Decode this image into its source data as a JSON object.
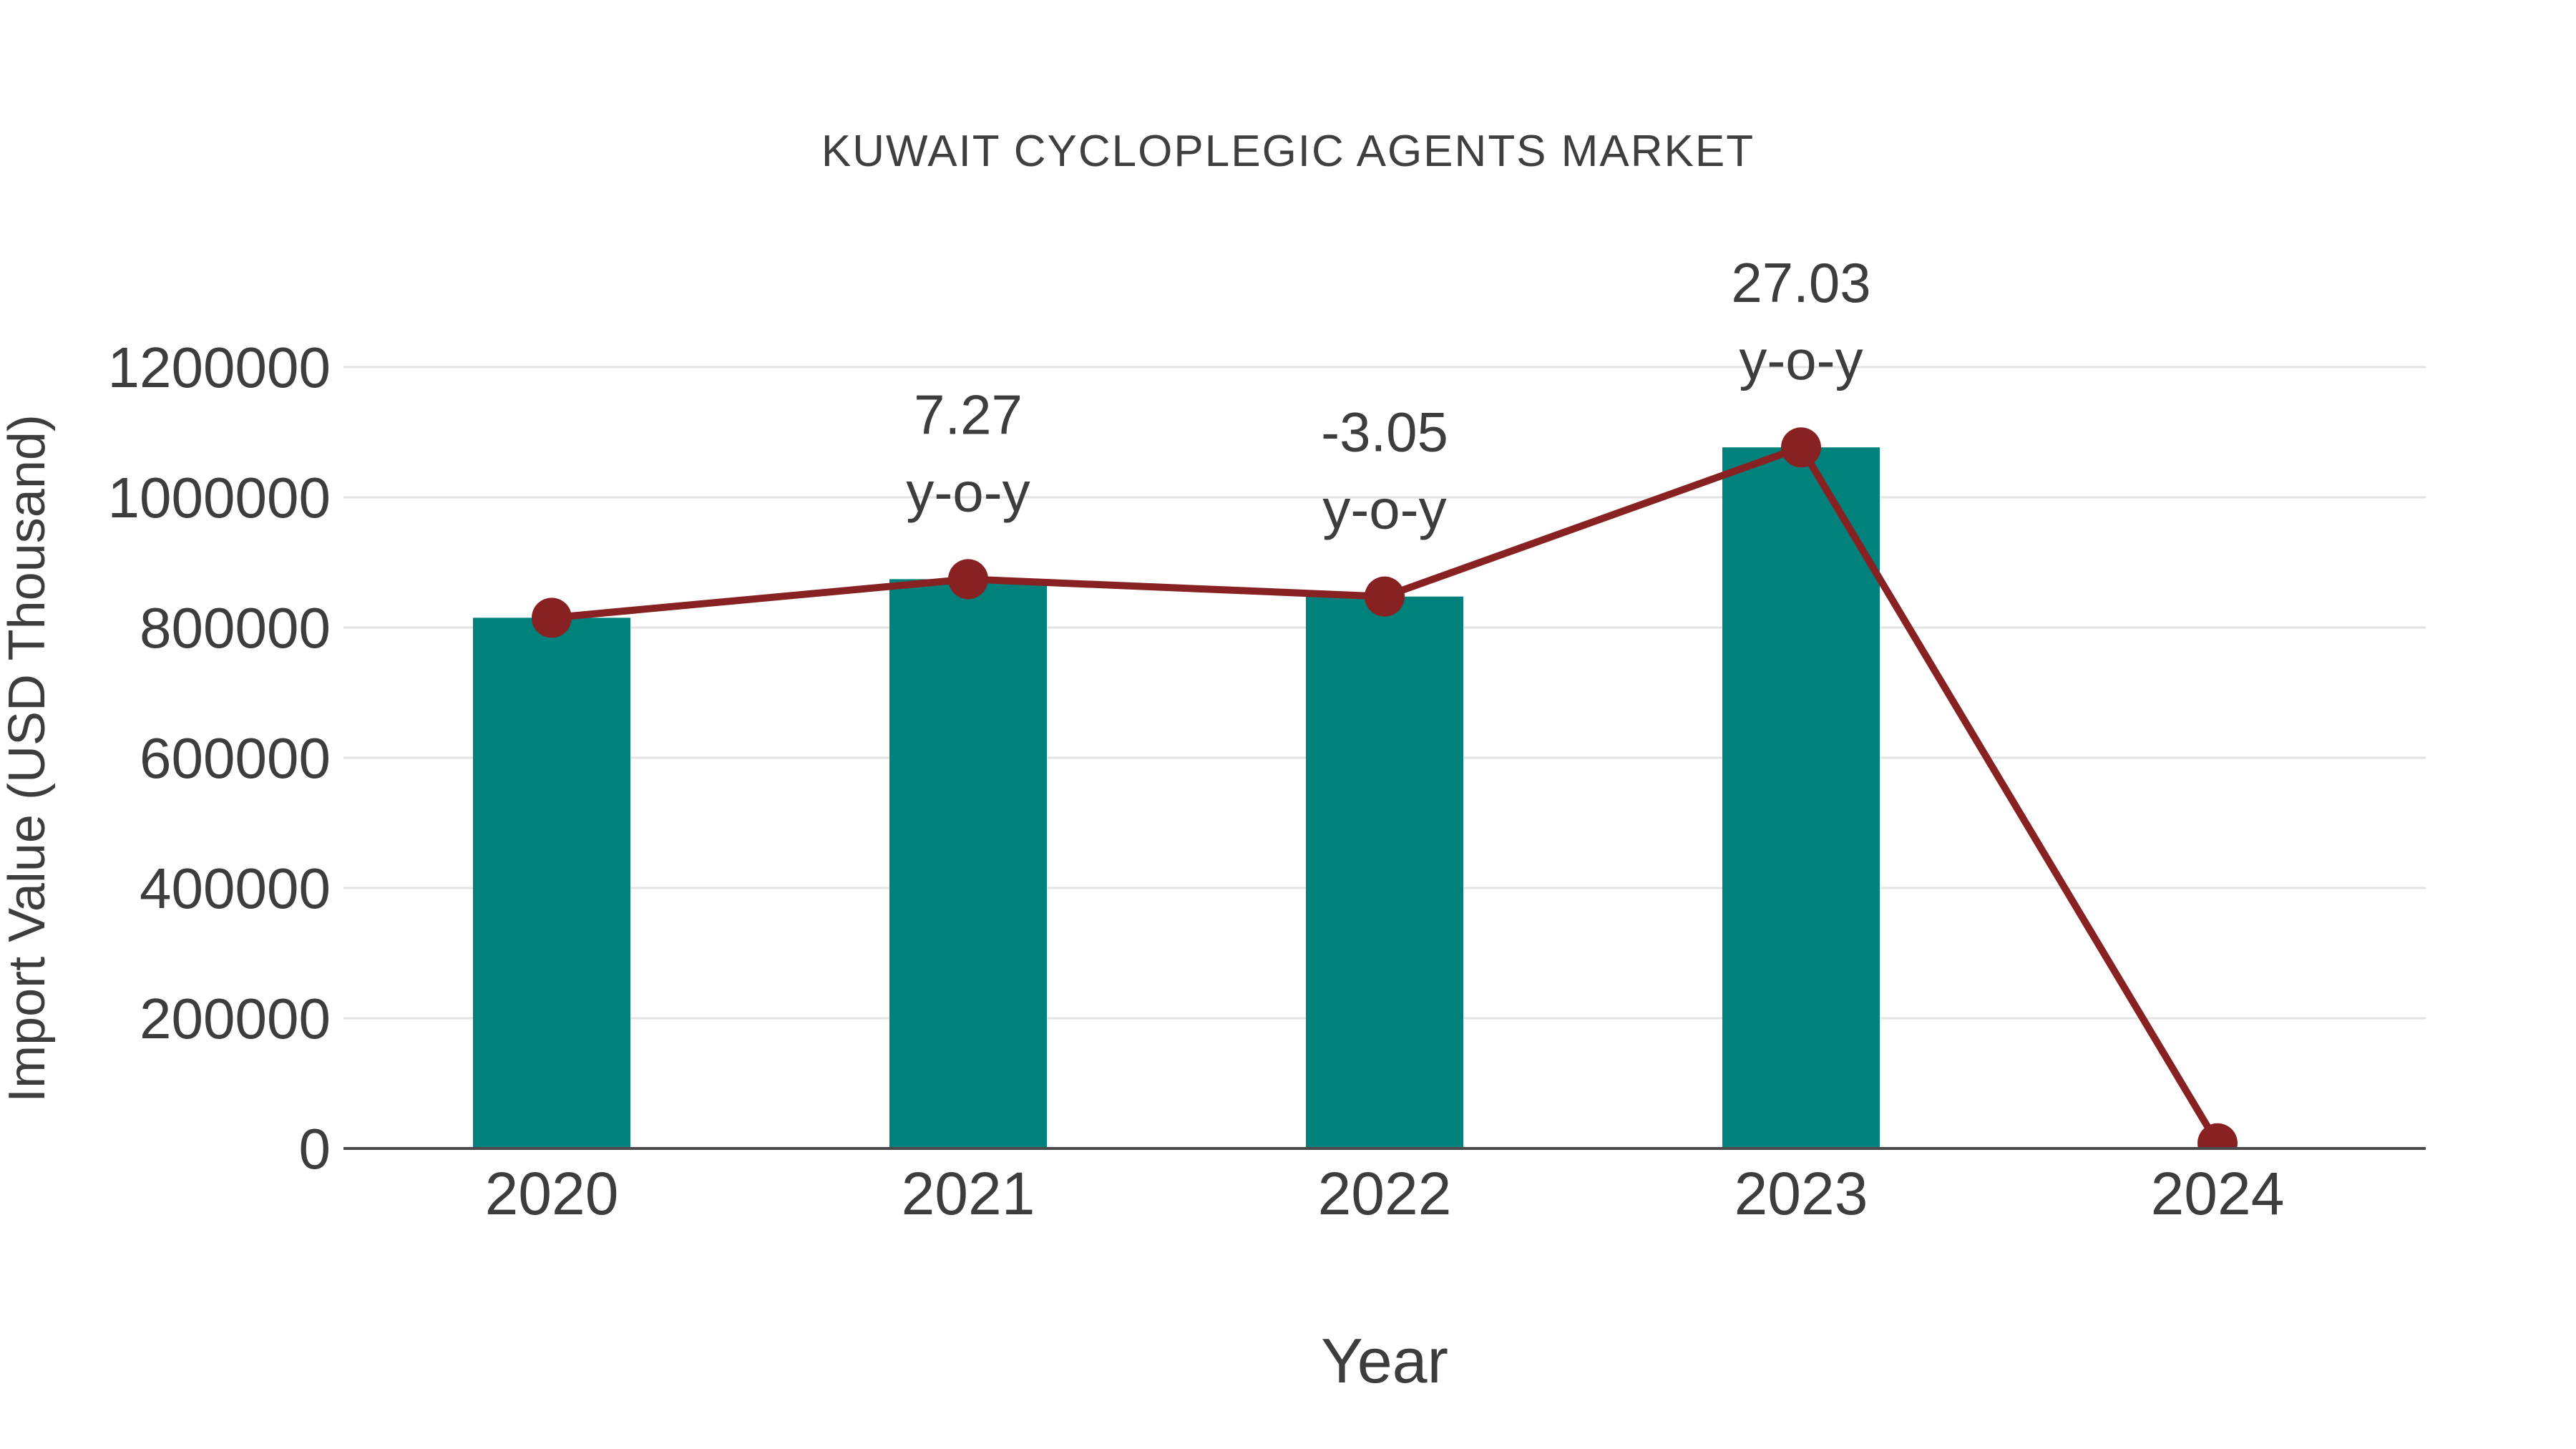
{
  "page": {
    "background": "#FFFFFF"
  },
  "chart_data": {
    "type": "bar+line",
    "title": "KUWAIT CYCLOPLEGIC AGENTS MARKET",
    "xlabel": "Year",
    "ylabel": "Import Value (USD Thousand)",
    "categories": [
      "2020",
      "2021",
      "2022",
      "2023",
      "2024"
    ],
    "series": [
      {
        "name": "Import Value bars",
        "type": "bar",
        "color": "#00817C",
        "values": [
          815000,
          874300,
          847600,
          1076700,
          null
        ]
      },
      {
        "name": "Import Value trend line",
        "type": "line",
        "color": "#882222",
        "values": [
          815000,
          874300,
          847600,
          1076700,
          8000
        ]
      }
    ],
    "annotations": [
      {
        "category": "2021",
        "value_label": "7.27",
        "unit_label": "y-o-y"
      },
      {
        "category": "2022",
        "value_label": "-3.05",
        "unit_label": "y-o-y"
      },
      {
        "category": "2023",
        "value_label": "27.03",
        "unit_label": "y-o-y"
      }
    ],
    "y_axis": {
      "ticks": [
        0,
        200000,
        400000,
        600000,
        800000,
        1000000,
        1200000
      ],
      "range": [
        0,
        1226000
      ],
      "grid": true
    },
    "legend": "none",
    "colors": {
      "bar": "#00817C",
      "line": "#882222",
      "marker": "#882222",
      "grid": "#E3E3E3",
      "axis": "#4A4A4A",
      "text": "#3D3D3D",
      "background": "#FFFFFF"
    }
  }
}
